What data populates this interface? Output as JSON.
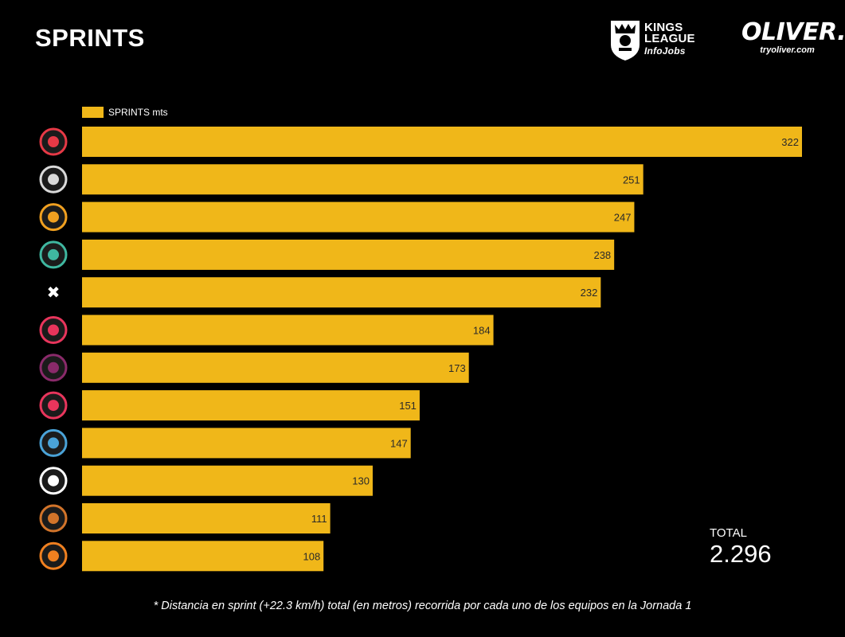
{
  "title": "SPRINTS",
  "logos": {
    "kings_league": {
      "line1": "KINGS",
      "line2": "LEAGUE",
      "line3": "InfoJobs"
    },
    "oliver": {
      "word": "OLIVER.",
      "url": "tryoliver.com"
    }
  },
  "colors": {
    "bar": "#F0B719",
    "background": "#000000",
    "text": "#FFFFFF"
  },
  "chart_data": {
    "type": "bar",
    "orientation": "horizontal",
    "series": [
      {
        "name": "SPRINTS mts",
        "values": [
          322,
          251,
          247,
          238,
          232,
          184,
          173,
          151,
          147,
          130,
          111,
          108
        ]
      }
    ],
    "team_logo_icons": [
      "gigantes-crest-icon",
      "barrio-crest-icon",
      "saiyans-crest-icon",
      "porcinos-crest-icon",
      "xbuyer-crest-icon",
      "aniquiladores-crest-icon",
      "kunisports-crest-icon",
      "jijantes-crest-icon",
      "1k-crest-icon",
      "pio-crest-icon",
      "ultimate-mostoles-crest-icon",
      "el-barrio-fire-crest-icon"
    ],
    "legend_position": "top-left",
    "grid": false,
    "xlim": [
      0,
      322
    ]
  },
  "total": {
    "label": "TOTAL",
    "value": "2.296"
  },
  "footnote": "* Distancia en sprint (+22.3 km/h) total (en metros) recorrida por cada uno de los equipos en la Jornada 1"
}
